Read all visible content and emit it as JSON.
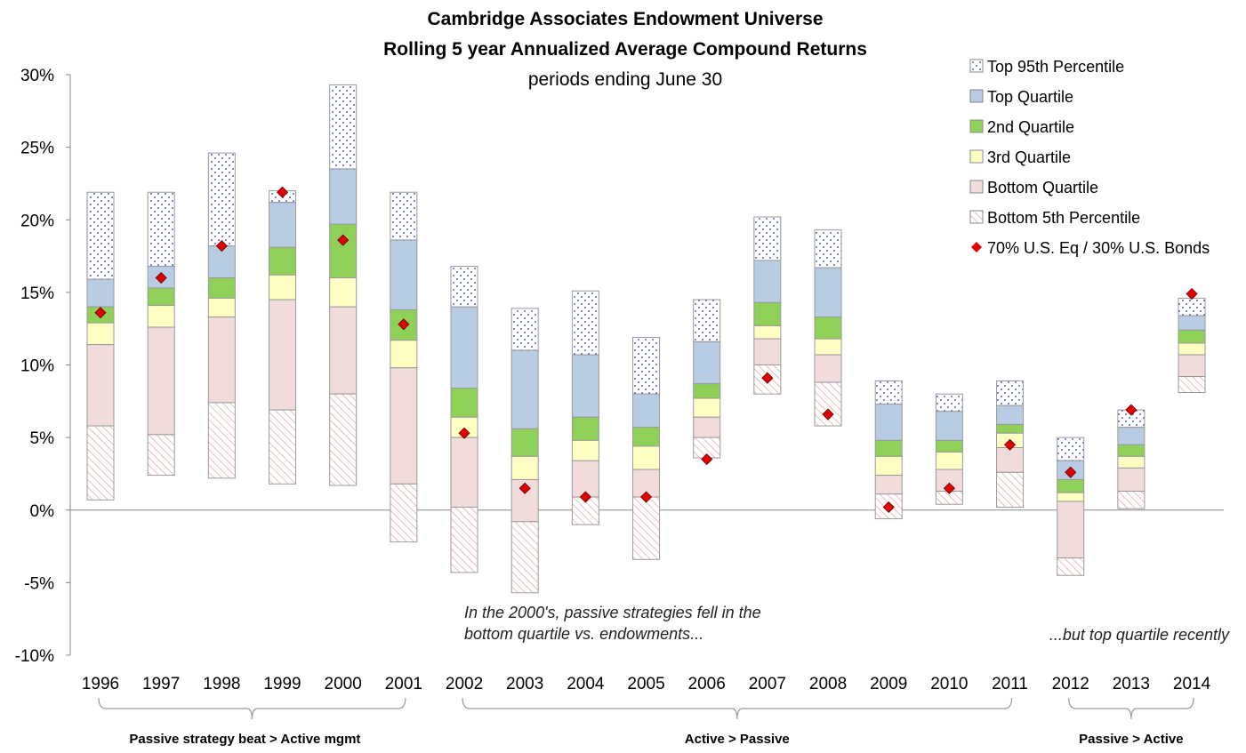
{
  "chart_data": {
    "type": "floating-bar",
    "title": [
      "Cambridge Associates Endowment Universe",
      "Rolling 5 year Annualized Average Compound Returns"
    ],
    "subtitle": "periods ending June 30",
    "categories": [
      "1996",
      "1997",
      "1998",
      "1999",
      "2000",
      "2001",
      "2002",
      "2003",
      "2004",
      "2005",
      "2006",
      "2007",
      "2008",
      "2009",
      "2010",
      "2011",
      "2012",
      "2013",
      "2014"
    ],
    "ylim": [
      -10,
      30
    ],
    "yticks": [
      {
        "value": -10,
        "label": "-10%"
      },
      {
        "value": -5,
        "label": "-5%"
      },
      {
        "value": 0,
        "label": "0%"
      },
      {
        "value": 5,
        "label": "5%"
      },
      {
        "value": 10,
        "label": "10%"
      },
      {
        "value": 15,
        "label": "15%"
      },
      {
        "value": 20,
        "label": "20%"
      },
      {
        "value": 25,
        "label": "25%"
      },
      {
        "value": 30,
        "label": "30%"
      }
    ],
    "legend": "top-right",
    "series": [
      {
        "name": "Top 95th Percentile",
        "color": "#2233cc",
        "pattern": "dots",
        "values": [
          [
            15.9,
            21.9
          ],
          [
            16.8,
            21.9
          ],
          [
            18.2,
            24.6
          ],
          [
            21.2,
            22.0
          ],
          [
            23.5,
            29.3
          ],
          [
            18.6,
            21.9
          ],
          [
            14.0,
            16.8
          ],
          [
            11.0,
            13.9
          ],
          [
            10.7,
            15.1
          ],
          [
            8.0,
            11.9
          ],
          [
            11.6,
            14.5
          ],
          [
            17.2,
            20.2
          ],
          [
            16.7,
            19.3
          ],
          [
            7.3,
            8.9
          ],
          [
            6.8,
            8.0
          ],
          [
            7.2,
            8.9
          ],
          [
            3.4,
            5.0
          ],
          [
            5.7,
            6.9
          ],
          [
            13.4,
            14.6
          ]
        ]
      },
      {
        "name": "Top Quartile",
        "color": "#b8cce4",
        "values": [
          [
            14.0,
            15.9
          ],
          [
            15.3,
            16.8
          ],
          [
            16.0,
            18.2
          ],
          [
            18.1,
            21.2
          ],
          [
            19.7,
            23.5
          ],
          [
            13.8,
            18.6
          ],
          [
            8.4,
            14.0
          ],
          [
            5.6,
            11.0
          ],
          [
            6.4,
            10.7
          ],
          [
            5.7,
            8.0
          ],
          [
            8.7,
            11.6
          ],
          [
            14.3,
            17.2
          ],
          [
            13.3,
            16.7
          ],
          [
            4.8,
            7.3
          ],
          [
            4.8,
            6.8
          ],
          [
            5.9,
            7.2
          ],
          [
            2.1,
            3.4
          ],
          [
            4.5,
            5.7
          ],
          [
            12.4,
            13.4
          ]
        ]
      },
      {
        "name": "2nd Quartile",
        "color": "#8fd158",
        "values": [
          [
            12.9,
            14.0
          ],
          [
            14.1,
            15.3
          ],
          [
            14.6,
            16.0
          ],
          [
            16.2,
            18.1
          ],
          [
            16.0,
            19.7
          ],
          [
            11.7,
            13.8
          ],
          [
            6.4,
            8.4
          ],
          [
            3.7,
            5.6
          ],
          [
            4.8,
            6.4
          ],
          [
            4.4,
            5.7
          ],
          [
            7.7,
            8.7
          ],
          [
            12.7,
            14.3
          ],
          [
            11.8,
            13.3
          ],
          [
            3.7,
            4.8
          ],
          [
            4.0,
            4.8
          ],
          [
            5.3,
            5.9
          ],
          [
            1.2,
            2.1
          ],
          [
            3.7,
            4.5
          ],
          [
            11.5,
            12.4
          ]
        ]
      },
      {
        "name": "3rd Quartile",
        "color": "#ffffc4",
        "values": [
          [
            11.4,
            12.9
          ],
          [
            12.6,
            14.1
          ],
          [
            13.3,
            14.6
          ],
          [
            14.5,
            16.2
          ],
          [
            14.0,
            16.0
          ],
          [
            9.8,
            11.7
          ],
          [
            5.0,
            6.4
          ],
          [
            2.1,
            3.7
          ],
          [
            3.4,
            4.8
          ],
          [
            2.8,
            4.4
          ],
          [
            6.4,
            7.7
          ],
          [
            11.8,
            12.7
          ],
          [
            10.7,
            11.8
          ],
          [
            2.4,
            3.7
          ],
          [
            2.8,
            4.0
          ],
          [
            4.3,
            5.3
          ],
          [
            0.6,
            1.2
          ],
          [
            2.9,
            3.7
          ],
          [
            10.7,
            11.5
          ]
        ]
      },
      {
        "name": "Bottom Quartile",
        "color": "#f2dcdb",
        "values": [
          [
            5.8,
            11.4
          ],
          [
            5.2,
            12.6
          ],
          [
            7.4,
            13.3
          ],
          [
            6.9,
            14.5
          ],
          [
            8.0,
            14.0
          ],
          [
            1.8,
            9.8
          ],
          [
            0.2,
            5.0
          ],
          [
            -0.8,
            2.1
          ],
          [
            0.9,
            3.4
          ],
          [
            0.9,
            2.8
          ],
          [
            5.0,
            6.4
          ],
          [
            10.0,
            11.8
          ],
          [
            8.8,
            10.7
          ],
          [
            1.1,
            2.4
          ],
          [
            1.3,
            2.8
          ],
          [
            2.6,
            4.3
          ],
          [
            -3.3,
            0.6
          ],
          [
            1.3,
            2.9
          ],
          [
            9.2,
            10.7
          ]
        ]
      },
      {
        "name": "Bottom 5th Percentile",
        "color": "#d99694",
        "pattern": "hatch",
        "values": [
          [
            0.7,
            5.8
          ],
          [
            2.4,
            5.2
          ],
          [
            2.2,
            7.4
          ],
          [
            1.8,
            6.9
          ],
          [
            1.7,
            8.0
          ],
          [
            -2.2,
            1.8
          ],
          [
            -4.3,
            0.2
          ],
          [
            -5.7,
            -0.8
          ],
          [
            -1.0,
            0.9
          ],
          [
            -3.4,
            0.9
          ],
          [
            3.6,
            5.0
          ],
          [
            8.0,
            10.0
          ],
          [
            5.8,
            8.8
          ],
          [
            -0.6,
            1.1
          ],
          [
            0.4,
            1.3
          ],
          [
            0.2,
            2.6
          ],
          [
            -4.5,
            -3.3
          ],
          [
            0.1,
            1.3
          ],
          [
            8.1,
            9.2
          ]
        ]
      },
      {
        "name": "70% U.S. Eq / 30% U.S. Bonds",
        "color": "#e00000",
        "type": "scatter",
        "values": [
          13.6,
          16.0,
          18.2,
          21.9,
          18.6,
          12.8,
          5.3,
          1.5,
          0.9,
          0.9,
          3.5,
          9.1,
          6.6,
          0.2,
          1.5,
          4.5,
          2.6,
          6.9,
          14.9
        ]
      }
    ],
    "annotations": [
      "In the 2000's, passive strategies fell in the\nbottom quartile vs. endowments...",
      "...but top quartile recently"
    ],
    "brackets": [
      "Passive strategy beat > Active mgmt",
      "Active > Passive",
      "Passive > Active"
    ]
  }
}
